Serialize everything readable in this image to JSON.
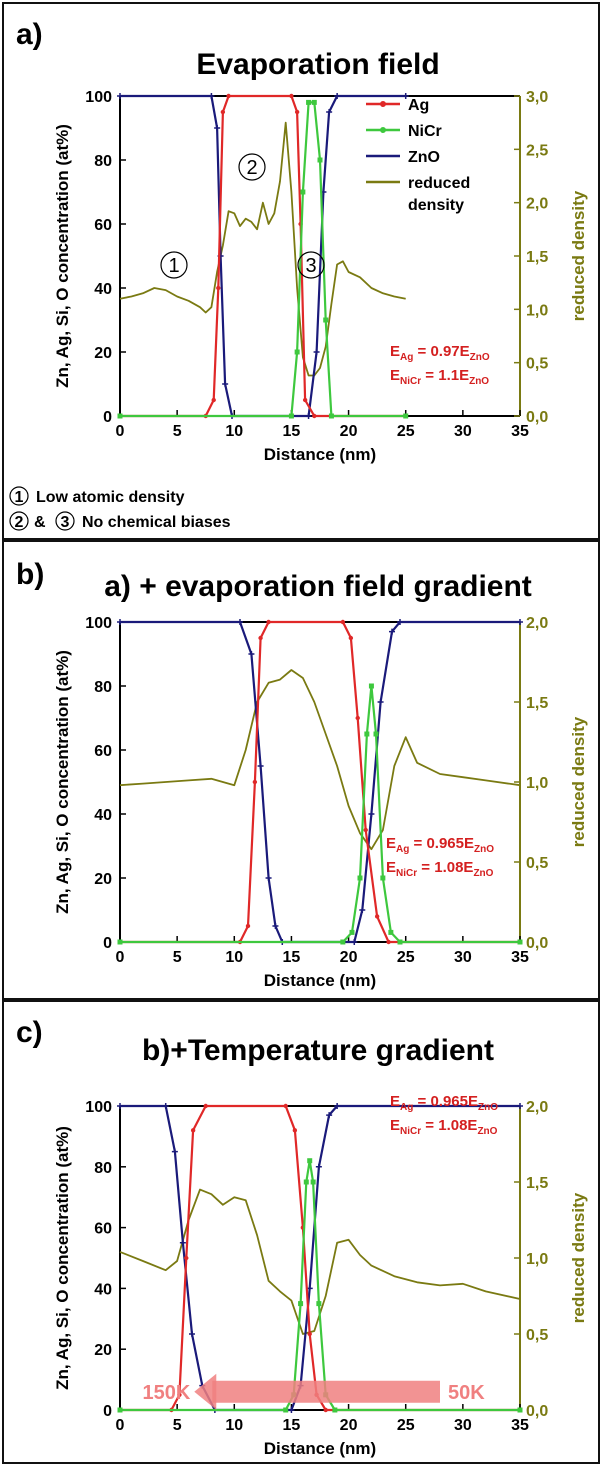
{
  "chart_data": [
    {
      "type": "line",
      "panel_label": "a)",
      "title": "Evaporation field",
      "xlabel": "Distance (nm)",
      "ylabel": "Zn, Ag, Si, O concentration (at%)",
      "y2label": "reduced density",
      "xlim": [
        0,
        35
      ],
      "ylim": [
        0,
        100
      ],
      "y2lim": [
        0,
        3
      ],
      "xticks": [
        "0",
        "5",
        "10",
        "15",
        "20",
        "25",
        "30",
        "35"
      ],
      "yticks": [
        "0",
        "20",
        "40",
        "60",
        "80",
        "100"
      ],
      "y2ticks": [
        "0,0",
        "0,5",
        "1,0",
        "1,5",
        "2,0",
        "2,5",
        "3,0"
      ],
      "legend": [
        "Ag",
        "NiCr",
        "ZnO",
        "reduced density"
      ],
      "legend_position": "top-right",
      "annotations": [
        "E_Ag = 0.97E_ZnO",
        "E_NiCr = 1.1E_ZnO"
      ],
      "markers": [
        "1",
        "2",
        "3"
      ],
      "footnotes": [
        "Low atomic density",
        "& ",
        "No chemical biases"
      ],
      "series": [
        {
          "name": "Ag",
          "color": "#e02828",
          "axis": "left",
          "x": [
            0,
            7.5,
            8.2,
            8.6,
            9.0,
            9.5,
            15.0,
            15.5,
            15.8,
            16.2,
            17.0,
            25
          ],
          "y": [
            0,
            0,
            5,
            40,
            95,
            100,
            100,
            95,
            60,
            5,
            0,
            0
          ]
        },
        {
          "name": "NiCr",
          "color": "#3ec83e",
          "axis": "left",
          "x": [
            0,
            15.0,
            15.5,
            16.0,
            16.5,
            17.0,
            17.5,
            18.0,
            18.5,
            25
          ],
          "y": [
            0,
            0,
            20,
            70,
            98,
            98,
            80,
            30,
            0,
            0
          ]
        },
        {
          "name": "ZnO",
          "color": "#1a1a7a",
          "axis": "left",
          "x": [
            0,
            8.0,
            8.5,
            8.8,
            9.2,
            9.8,
            16.5,
            17.2,
            17.8,
            18.3,
            19.0,
            25
          ],
          "y": [
            100,
            100,
            90,
            50,
            10,
            0,
            0,
            20,
            70,
            95,
            100,
            100
          ]
        },
        {
          "name": "reduced density",
          "color": "#7a7a12",
          "axis": "right",
          "x": [
            0,
            1,
            2,
            3,
            4,
            5,
            6,
            7,
            7.5,
            8,
            8.5,
            9,
            9.5,
            10,
            10.5,
            11,
            11.5,
            12,
            12.5,
            13,
            13.5,
            14,
            14.5,
            15,
            15.5,
            16,
            16.5,
            17,
            17.5,
            18,
            18.5,
            19,
            19.5,
            20,
            21,
            22,
            23,
            24,
            25
          ],
          "y": [
            1.1,
            1.12,
            1.15,
            1.2,
            1.18,
            1.12,
            1.08,
            1.02,
            0.97,
            1.02,
            1.35,
            1.6,
            1.92,
            1.9,
            1.78,
            1.85,
            1.82,
            1.75,
            2.0,
            1.8,
            1.9,
            2.2,
            2.75,
            2.1,
            1.2,
            0.55,
            0.38,
            0.38,
            0.45,
            0.65,
            1.05,
            1.42,
            1.45,
            1.35,
            1.3,
            1.2,
            1.15,
            1.12,
            1.1
          ]
        }
      ]
    },
    {
      "type": "line",
      "panel_label": "b)",
      "title": "a) + evaporation field gradient",
      "xlabel": "Distance (nm)",
      "ylabel": "Zn, Ag, Si, O concentration (at%)",
      "y2label": "reduced density",
      "xlim": [
        0,
        35
      ],
      "ylim": [
        0,
        100
      ],
      "y2lim": [
        0,
        2
      ],
      "xticks": [
        "0",
        "5",
        "10",
        "15",
        "20",
        "25",
        "30",
        "35"
      ],
      "yticks": [
        "0",
        "20",
        "40",
        "60",
        "80",
        "100"
      ],
      "y2ticks": [
        "0,0",
        "0,5",
        "1,0",
        "1,5",
        "2,0"
      ],
      "annotations": [
        "E_Ag = 0.965E_ZnO",
        "E_NiCr = 1.08E_ZnO"
      ],
      "series": [
        {
          "name": "Ag",
          "color": "#e02828",
          "axis": "left",
          "x": [
            0,
            10.5,
            11.2,
            11.8,
            12.3,
            13.0,
            19.5,
            20.2,
            20.8,
            21.5,
            22.5,
            23.5,
            35
          ],
          "y": [
            0,
            0,
            5,
            50,
            95,
            100,
            100,
            95,
            70,
            35,
            8,
            0,
            0
          ]
        },
        {
          "name": "NiCr",
          "color": "#3ec83e",
          "axis": "left",
          "x": [
            0,
            19.5,
            20.3,
            21.0,
            21.6,
            22.0,
            22.4,
            23.0,
            23.7,
            24.5,
            35
          ],
          "y": [
            0,
            0,
            3,
            20,
            65,
            80,
            65,
            20,
            3,
            0,
            0
          ]
        },
        {
          "name": "ZnO",
          "color": "#1a1a7a",
          "axis": "left",
          "x": [
            0,
            10.5,
            11.5,
            12.3,
            13.0,
            13.6,
            14.2,
            20.5,
            21.2,
            22.0,
            22.8,
            23.8,
            24.5,
            35
          ],
          "y": [
            100,
            100,
            90,
            55,
            20,
            5,
            0,
            0,
            10,
            40,
            75,
            97,
            100,
            100
          ]
        },
        {
          "name": "reduced density",
          "color": "#7a7a12",
          "axis": "right",
          "x": [
            0,
            2,
            4,
            6,
            8,
            10,
            11,
            12,
            13,
            14,
            15,
            16,
            17,
            18,
            19,
            20,
            21,
            22,
            23,
            24,
            25,
            26,
            28,
            30,
            32,
            35
          ],
          "y": [
            0.98,
            0.99,
            1.0,
            1.01,
            1.02,
            0.98,
            1.2,
            1.5,
            1.62,
            1.64,
            1.7,
            1.65,
            1.5,
            1.3,
            1.1,
            0.85,
            0.68,
            0.58,
            0.7,
            1.1,
            1.28,
            1.12,
            1.05,
            1.03,
            1.01,
            0.98
          ]
        }
      ]
    },
    {
      "type": "line",
      "panel_label": "c)",
      "title": "b)+Temperature gradient",
      "xlabel": "Distance (nm)",
      "ylabel": "Zn, Ag, Si, O concentration (at%)",
      "y2label": "reduced density",
      "xlim": [
        0,
        35
      ],
      "ylim": [
        0,
        100
      ],
      "y2lim": [
        0,
        2
      ],
      "xticks": [
        "0",
        "5",
        "10",
        "15",
        "20",
        "25",
        "30",
        "35"
      ],
      "yticks": [
        "0",
        "20",
        "40",
        "60",
        "80",
        "100"
      ],
      "y2ticks": [
        "0,0",
        "0,5",
        "1,0",
        "1,5",
        "2,0"
      ],
      "annotations": [
        "E_Ag = 0.965E_ZnO",
        "E_NiCr = 1.08E_ZnO"
      ],
      "arrow": {
        "from_label": "50K",
        "to_label": "150K",
        "x_from": 28,
        "x_to": 6.5
      },
      "series": [
        {
          "name": "Ag",
          "color": "#e02828",
          "axis": "left",
          "x": [
            0,
            4.5,
            5.2,
            5.8,
            6.4,
            7.5,
            14.5,
            15.3,
            16.0,
            16.6,
            17.2,
            18.0,
            35
          ],
          "y": [
            0,
            0,
            5,
            50,
            92,
            100,
            100,
            92,
            60,
            25,
            5,
            0,
            0
          ]
        },
        {
          "name": "NiCr",
          "color": "#3ec83e",
          "axis": "left",
          "x": [
            0,
            14.5,
            15.2,
            15.8,
            16.3,
            16.6,
            16.9,
            17.4,
            18.0,
            18.8,
            35
          ],
          "y": [
            0,
            0,
            5,
            35,
            75,
            82,
            75,
            35,
            5,
            0,
            0
          ]
        },
        {
          "name": "ZnO",
          "color": "#1a1a7a",
          "axis": "left",
          "x": [
            0,
            4.0,
            4.8,
            5.5,
            6.3,
            7.2,
            8.3,
            15.0,
            15.8,
            16.6,
            17.4,
            18.3,
            19.0,
            35
          ],
          "y": [
            100,
            100,
            85,
            55,
            25,
            8,
            0,
            0,
            8,
            40,
            80,
            97,
            100,
            100
          ]
        },
        {
          "name": "reduced density",
          "color": "#7a7a12",
          "axis": "right",
          "x": [
            0,
            2,
            4,
            5,
            6,
            7,
            8,
            9,
            10,
            11,
            12,
            13,
            14,
            15,
            16,
            17,
            18,
            19,
            20,
            21,
            22,
            24,
            26,
            28,
            30,
            32,
            35
          ],
          "y": [
            1.04,
            0.98,
            0.92,
            0.98,
            1.25,
            1.45,
            1.42,
            1.35,
            1.4,
            1.38,
            1.15,
            0.85,
            0.78,
            0.72,
            0.5,
            0.52,
            0.75,
            1.1,
            1.12,
            1.02,
            0.95,
            0.88,
            0.84,
            0.82,
            0.83,
            0.78,
            0.73
          ]
        }
      ]
    }
  ]
}
